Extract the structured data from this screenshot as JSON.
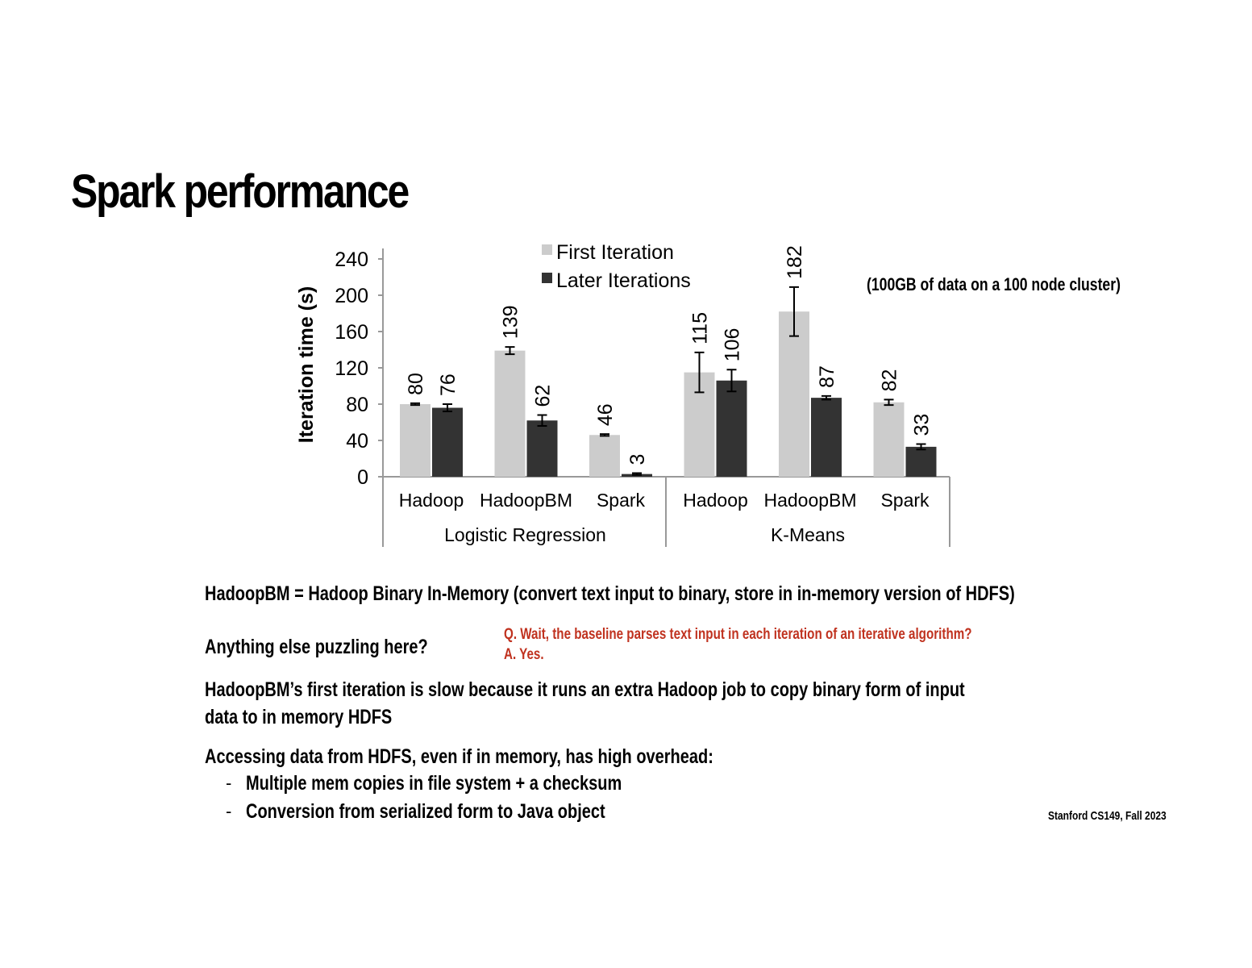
{
  "slide": {
    "title": "Spark performance",
    "note": "(100GB of data on a 100 node cluster)",
    "definition": "HadoopBM = Hadoop Binary In-Memory (convert text input to binary, store in in-memory version of HDFS)",
    "question": "Anything else puzzling here?",
    "qa_q": "Q. Wait, the baseline parses text input in each iteration of an iterative algorithm?",
    "qa_a": "A. Yes.",
    "point1_line1": "HadoopBM’s first iteration is slow because it runs an extra Hadoop job to copy binary form of input",
    "point1_line2": "data to in memory HDFS",
    "point2": "Accessing data from HDFS, even if in memory, has high overhead:",
    "bullet_marker": "-",
    "bullets": [
      "Multiple mem copies in file system + a checksum",
      "Conversion from serialized form to Java object"
    ],
    "footer": "Stanford CS149, Fall 2023"
  },
  "chart_data": {
    "type": "bar",
    "ylabel": "Iteration time (s)",
    "ylim": [
      0,
      240
    ],
    "yticks": [
      0,
      40,
      80,
      120,
      160,
      200,
      240
    ],
    "grid": false,
    "legend_position": "top-center",
    "colors": {
      "first": "#cccccc",
      "later": "#333333",
      "axis": "#999999"
    },
    "groups": [
      {
        "name": "Logistic Regression",
        "categories": [
          "Hadoop",
          "HadoopBM",
          "Spark"
        ]
      },
      {
        "name": "K-Means",
        "categories": [
          "Hadoop",
          "HadoopBM",
          "Spark"
        ]
      }
    ],
    "series": [
      {
        "name": "First Iteration",
        "values": [
          80,
          139,
          46,
          115,
          182,
          82
        ],
        "errors": [
          1,
          4,
          1,
          22,
          27,
          3
        ]
      },
      {
        "name": "Later Iterations",
        "values": [
          76,
          62,
          3,
          106,
          87,
          33
        ],
        "errors": [
          4,
          6,
          1,
          12,
          2,
          3
        ]
      }
    ]
  }
}
